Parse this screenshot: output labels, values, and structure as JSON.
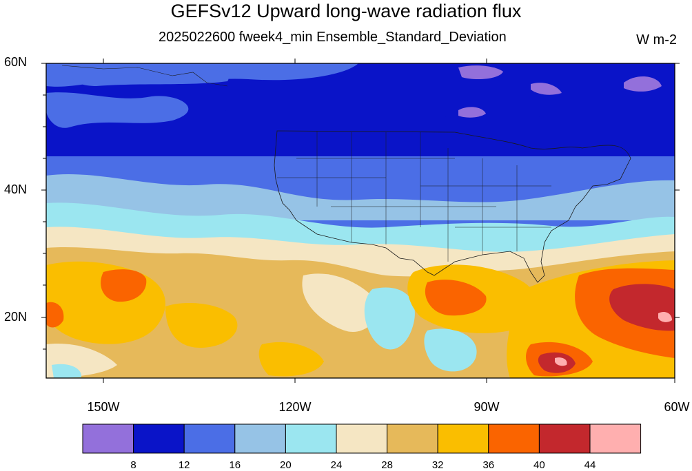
{
  "title": "GEFSv12 Upward long-wave radiation flux",
  "subtitle": "2025022600 fweek4_min Ensemble_Standard_Deviation",
  "units": "W m-2",
  "map": {
    "lat_labels": [
      "60N",
      "40N",
      "20N"
    ],
    "lon_labels": [
      "150W",
      "120W",
      "90W",
      "60W"
    ]
  },
  "colorbar": {
    "labels": [
      "8",
      "12",
      "16",
      "20",
      "24",
      "28",
      "32",
      "36",
      "40",
      "44"
    ],
    "colors": [
      "#9370db",
      "#0a14c8",
      "#4b6ee6",
      "#96c3e6",
      "#9be6f0",
      "#f5e6c3",
      "#e6b95a",
      "#fabe00",
      "#fa6400",
      "#c3282d",
      "#ffafaf"
    ]
  }
}
